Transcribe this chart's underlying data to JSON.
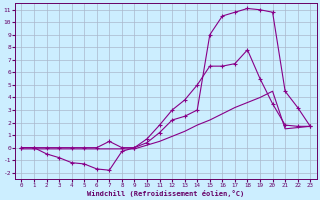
{
  "xlabel": "Windchill (Refroidissement éolien,°C)",
  "bg_color": "#cceeff",
  "grid_color": "#aab8cc",
  "line_color": "#880088",
  "xlim": [
    -0.5,
    23.5
  ],
  "ylim": [
    -2.5,
    11.5
  ],
  "xticks": [
    0,
    1,
    2,
    3,
    4,
    5,
    6,
    7,
    8,
    9,
    10,
    11,
    12,
    13,
    14,
    15,
    16,
    17,
    18,
    19,
    20,
    21,
    22,
    23
  ],
  "yticks": [
    -2,
    -1,
    0,
    1,
    2,
    3,
    4,
    5,
    6,
    7,
    8,
    9,
    10,
    11
  ],
  "line1_x": [
    0,
    1,
    2,
    3,
    4,
    5,
    6,
    7,
    8,
    9,
    10,
    11,
    12,
    13,
    14,
    15,
    16,
    17,
    18,
    19,
    20,
    21,
    22,
    23
  ],
  "line1_y": [
    0,
    0,
    -0.5,
    -0.8,
    -1.2,
    -1.3,
    -1.7,
    -1.8,
    -0.3,
    0,
    0.4,
    1.2,
    2.2,
    2.5,
    3.0,
    9.0,
    10.5,
    10.8,
    11.1,
    11.0,
    10.8,
    4.5,
    3.2,
    1.7
  ],
  "line2_x": [
    0,
    1,
    2,
    3,
    4,
    5,
    6,
    7,
    8,
    9,
    10,
    11,
    12,
    13,
    14,
    15,
    16,
    17,
    18,
    19,
    20,
    21,
    22,
    23
  ],
  "line2_y": [
    0,
    0,
    0,
    0,
    0,
    0,
    0,
    0.5,
    0,
    0,
    0.7,
    1.8,
    3.0,
    3.8,
    5.0,
    6.5,
    6.5,
    6.7,
    7.8,
    5.5,
    3.5,
    1.8,
    1.7,
    1.7
  ],
  "line3_x": [
    0,
    1,
    2,
    3,
    4,
    5,
    6,
    7,
    8,
    9,
    10,
    11,
    12,
    13,
    14,
    15,
    16,
    17,
    18,
    19,
    20,
    21,
    22,
    23
  ],
  "line3_y": [
    -0.1,
    -0.1,
    -0.1,
    -0.1,
    -0.1,
    -0.1,
    -0.1,
    -0.1,
    -0.1,
    -0.1,
    0.2,
    0.5,
    0.9,
    1.3,
    1.8,
    2.2,
    2.7,
    3.2,
    3.6,
    4.0,
    4.5,
    1.5,
    1.6,
    1.7
  ]
}
